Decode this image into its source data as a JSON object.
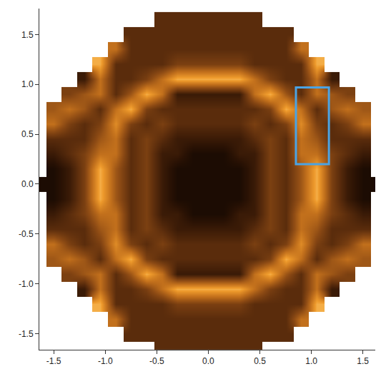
{
  "chart_data": {
    "type": "heatmap",
    "x": [
      -1.65,
      -1.5,
      -1.35,
      -1.2,
      -1.05,
      -0.9,
      -0.75,
      -0.6,
      -0.45,
      -0.3,
      -0.15,
      0,
      0.15,
      0.3,
      0.45,
      0.6,
      0.75,
      0.9,
      1.05,
      1.2,
      1.35,
      1.5,
      1.65
    ],
    "y": [
      -1.65,
      -1.5,
      -1.35,
      -1.2,
      -1.05,
      -0.9,
      -0.75,
      -0.6,
      -0.45,
      -0.3,
      -0.15,
      0,
      0.15,
      0.3,
      0.45,
      0.6,
      0.75,
      0.9,
      1.05,
      1.2,
      1.35,
      1.5,
      1.65
    ],
    "z": [
      [
        null,
        null,
        null,
        null,
        null,
        null,
        null,
        null,
        3,
        3,
        3,
        3,
        3,
        3,
        3,
        null,
        null,
        null,
        null,
        null,
        null,
        null,
        null
      ],
      [
        null,
        null,
        null,
        null,
        null,
        null,
        3,
        3,
        3,
        3,
        3,
        3,
        3,
        3,
        3,
        3,
        3,
        null,
        null,
        null,
        null,
        null,
        null
      ],
      [
        null,
        null,
        null,
        null,
        null,
        6,
        3,
        3,
        3,
        3,
        3,
        3,
        3,
        3,
        3,
        3,
        3,
        6,
        null,
        null,
        null,
        null,
        null
      ],
      [
        null,
        null,
        null,
        null,
        8,
        3,
        3,
        3,
        3,
        4,
        4,
        4,
        4,
        4,
        3,
        3,
        3,
        3,
        8,
        null,
        null,
        null,
        null
      ],
      [
        null,
        null,
        null,
        2,
        6,
        3,
        3,
        4,
        6,
        8,
        8,
        8,
        8,
        8,
        6,
        4,
        3,
        3,
        6,
        2,
        null,
        null,
        null
      ],
      [
        null,
        null,
        4,
        5,
        6,
        3,
        5,
        8,
        6,
        2,
        2,
        2,
        2,
        2,
        6,
        8,
        5,
        3,
        6,
        5,
        4,
        null,
        null
      ],
      [
        null,
        5,
        6,
        5,
        3,
        6,
        8,
        4,
        3,
        3,
        3,
        3,
        3,
        3,
        3,
        4,
        8,
        6,
        3,
        5,
        6,
        5,
        null
      ],
      [
        null,
        6,
        4,
        3,
        4,
        7,
        4,
        3,
        4,
        3,
        3,
        3,
        3,
        3,
        4,
        3,
        4,
        7,
        4,
        3,
        4,
        6,
        null
      ],
      [
        null,
        3,
        3,
        3,
        5,
        6,
        3,
        4,
        3,
        2,
        2,
        2,
        2,
        2,
        3,
        4,
        3,
        6,
        5,
        3,
        3,
        3,
        null
      ],
      [
        null,
        2,
        3,
        4,
        6,
        6,
        3,
        4,
        2,
        2,
        1,
        1,
        1,
        2,
        2,
        4,
        3,
        6,
        6,
        4,
        3,
        2,
        null
      ],
      [
        null,
        1,
        2,
        4,
        8,
        5,
        3,
        4,
        2,
        1,
        1,
        1,
        1,
        1,
        2,
        4,
        3,
        5,
        8,
        4,
        2,
        1,
        null
      ],
      [
        1,
        1,
        2,
        4,
        8,
        5,
        3,
        4,
        2,
        1,
        1,
        1,
        1,
        1,
        2,
        4,
        3,
        5,
        8,
        4,
        2,
        1,
        1
      ],
      [
        null,
        1,
        2,
        4,
        8,
        5,
        3,
        4,
        2,
        1,
        1,
        1,
        1,
        1,
        2,
        4,
        3,
        5,
        8,
        4,
        2,
        1,
        null
      ],
      [
        null,
        2,
        3,
        4,
        6,
        6,
        3,
        4,
        2,
        2,
        1,
        1,
        1,
        2,
        2,
        4,
        3,
        6,
        6,
        4,
        3,
        2,
        null
      ],
      [
        null,
        3,
        3,
        3,
        5,
        6,
        3,
        4,
        3,
        2,
        2,
        2,
        2,
        2,
        3,
        4,
        3,
        6,
        5,
        3,
        3,
        3,
        null
      ],
      [
        null,
        6,
        4,
        3,
        4,
        7,
        4,
        3,
        4,
        3,
        3,
        3,
        3,
        3,
        4,
        3,
        4,
        7,
        4,
        3,
        4,
        6,
        null
      ],
      [
        null,
        5,
        6,
        5,
        3,
        6,
        8,
        4,
        3,
        3,
        3,
        3,
        3,
        3,
        3,
        4,
        8,
        6,
        3,
        5,
        6,
        5,
        null
      ],
      [
        null,
        null,
        4,
        5,
        6,
        3,
        5,
        8,
        6,
        2,
        2,
        2,
        2,
        2,
        6,
        8,
        5,
        3,
        6,
        5,
        4,
        null,
        null
      ],
      [
        null,
        null,
        null,
        2,
        6,
        3,
        3,
        4,
        6,
        8,
        8,
        8,
        8,
        8,
        6,
        4,
        3,
        3,
        6,
        2,
        null,
        null,
        null
      ],
      [
        null,
        null,
        null,
        null,
        8,
        3,
        3,
        3,
        3,
        4,
        4,
        4,
        4,
        4,
        3,
        3,
        3,
        3,
        8,
        null,
        null,
        null,
        null
      ],
      [
        null,
        null,
        null,
        null,
        null,
        6,
        3,
        3,
        3,
        3,
        3,
        3,
        3,
        3,
        3,
        3,
        3,
        6,
        null,
        null,
        null,
        null,
        null
      ],
      [
        null,
        null,
        null,
        null,
        null,
        null,
        3,
        3,
        3,
        3,
        3,
        3,
        3,
        3,
        3,
        3,
        3,
        null,
        null,
        null,
        null,
        null,
        null
      ],
      [
        null,
        null,
        null,
        null,
        null,
        null,
        null,
        null,
        3,
        3,
        3,
        3,
        3,
        3,
        3,
        null,
        null,
        null,
        null,
        null,
        null,
        null,
        null
      ]
    ],
    "zlim": [
      0,
      10
    ],
    "xlim": [
      -1.64,
      1.62
    ],
    "ylim": [
      -1.66,
      1.76
    ],
    "xticks": [
      -1.5,
      {
        "value": -1,
        "label": "-1.0"
      },
      -0.5,
      {
        "value": 0,
        "label": "0.0"
      },
      0.5,
      {
        "value": 1,
        "label": "1.0"
      },
      1.5
    ],
    "yticks": [
      -1.5,
      {
        "value": -1,
        "label": "-1.0"
      },
      -0.5,
      {
        "value": 0,
        "label": "0.0"
      },
      0.5,
      {
        "value": 1,
        "label": "1.0"
      },
      1.5
    ],
    "box": {
      "x": [
        0.85,
        1.17
      ],
      "y": [
        0.2,
        0.97
      ],
      "color": "#4ba3e3"
    }
  }
}
